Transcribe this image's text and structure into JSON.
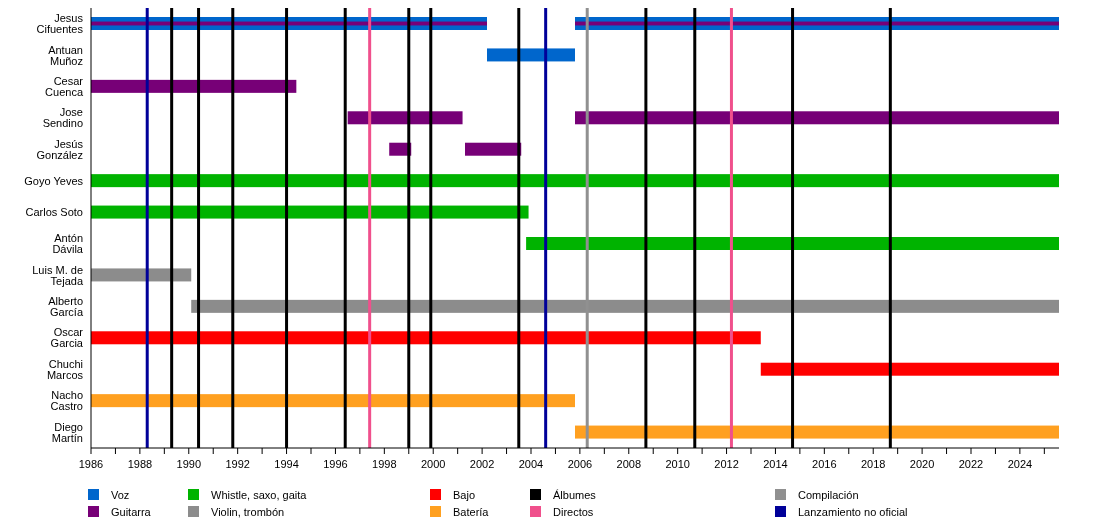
{
  "chart_data": {
    "type": "bar",
    "orientation": "horizontal",
    "legend": "bottom",
    "categories": [
      "Jesus Cifuentes",
      "Antuan Muñoz",
      "Cesar Cuenca",
      "Jose Sendino",
      "Jesús González",
      "Goyo Yeves",
      "Carlos Soto",
      "Antón Dávila",
      "Luis M. de Tejada",
      "Alberto García",
      "Oscar Garcia",
      "Chuchi Marcos",
      "Nacho Castro",
      "Diego Martín"
    ],
    "xlim": [
      1986,
      2025.6
    ],
    "xticks": [
      1986,
      {
        "value": 1987,
        "label": null
      },
      1988,
      {
        "value": 1989,
        "label": null
      },
      1990,
      {
        "value": 1991,
        "label": null
      },
      1992,
      {
        "value": 1993,
        "label": null
      },
      1994,
      {
        "value": 1995,
        "label": null
      },
      1996,
      {
        "value": 1997,
        "label": null
      },
      1998,
      {
        "value": 1999,
        "label": null
      },
      2000,
      {
        "value": 2001,
        "label": null
      },
      2002,
      {
        "value": 2003,
        "label": null
      },
      2004,
      {
        "value": 2005,
        "label": null
      },
      2006,
      {
        "value": 2007,
        "label": null
      },
      2008,
      {
        "value": 2009,
        "label": null
      },
      2010,
      {
        "value": 2011,
        "label": null
      },
      2012,
      {
        "value": 2013,
        "label": null
      },
      2014,
      {
        "value": 2015,
        "label": null
      },
      2016,
      {
        "value": 2017,
        "label": null
      },
      2018,
      {
        "value": 2019,
        "label": null
      },
      2020,
      {
        "value": 2021,
        "label": null
      },
      2022,
      {
        "value": 2023,
        "label": null
      },
      2024,
      {
        "value": 2025,
        "label": null
      }
    ],
    "series": [
      {
        "name": "Voz",
        "color": "#0066cc",
        "base": [
          1986,
          2002.2,
          null,
          null,
          null,
          null,
          null,
          null,
          null,
          null,
          null,
          null,
          null,
          null
        ],
        "values": [
          16.2,
          3.6,
          null,
          null,
          null,
          null,
          null,
          null,
          null,
          null,
          null,
          null,
          null,
          null
        ]
      },
      {
        "name": "Guitarra",
        "color": "#770077",
        "base": [
          1986,
          null,
          1986,
          1996.5,
          1998.2,
          null,
          null,
          null,
          null,
          null,
          null,
          null,
          null,
          null
        ],
        "values": [
          16.2,
          null,
          8.4,
          4.7,
          0.9,
          null,
          null,
          null,
          null,
          null,
          null,
          null,
          null,
          null
        ]
      },
      {
        "color": "#0066cc",
        "base": [
          2005.8,
          null,
          null,
          null,
          null,
          null,
          null,
          null,
          null,
          null,
          null,
          null,
          null,
          null
        ],
        "values": [
          19.8,
          null,
          null,
          null,
          null,
          null,
          null,
          null,
          null,
          null,
          null,
          null,
          null,
          null
        ]
      },
      {
        "color": "#770077",
        "base": [
          2005.8,
          null,
          null,
          2005.8,
          2001.3,
          null,
          null,
          null,
          null,
          null,
          null,
          null,
          null,
          null
        ],
        "values": [
          19.8,
          null,
          null,
          19.8,
          2.3,
          null,
          null,
          null,
          null,
          null,
          null,
          null,
          null,
          null
        ]
      },
      {
        "name": "Whistle, saxo, gaita",
        "color": "#00b300",
        "base": [
          null,
          null,
          null,
          null,
          null,
          1986,
          1986,
          2003.8,
          null,
          null,
          null,
          null,
          null,
          null
        ],
        "values": [
          null,
          null,
          null,
          null,
          null,
          39.6,
          17.9,
          21.8,
          null,
          null,
          null,
          null,
          null,
          null
        ]
      },
      {
        "name": "Violin, trombón",
        "color": "#8c8c8c",
        "base": [
          null,
          null,
          null,
          null,
          null,
          null,
          null,
          null,
          1986,
          1990.1,
          null,
          null,
          null,
          null
        ],
        "values": [
          null,
          null,
          null,
          null,
          null,
          null,
          null,
          null,
          4.1,
          35.5,
          null,
          null,
          null,
          null
        ]
      },
      {
        "name": "Bajo",
        "color": "#ff0000",
        "base": [
          null,
          null,
          null,
          null,
          null,
          null,
          null,
          null,
          null,
          null,
          1986,
          2013.4,
          null,
          null
        ],
        "values": [
          null,
          null,
          null,
          null,
          null,
          null,
          null,
          null,
          null,
          null,
          27.4,
          12.2,
          null,
          null
        ]
      },
      {
        "name": "Batería",
        "color": "#ffa020",
        "base": [
          null,
          null,
          null,
          null,
          null,
          null,
          null,
          null,
          null,
          null,
          null,
          null,
          1986,
          2005.8
        ],
        "values": [
          null,
          null,
          null,
          null,
          null,
          null,
          null,
          null,
          null,
          null,
          null,
          null,
          19.8,
          19.8
        ]
      }
    ],
    "ref_lines": [
      {
        "axis": "x",
        "value": 1989.3,
        "label": "Álbumes",
        "color": "#000000"
      },
      {
        "axis": "x",
        "value": 1990.4,
        "color": "#000000"
      },
      {
        "axis": "x",
        "value": 1991.8,
        "color": "#000000"
      },
      {
        "axis": "x",
        "value": 1994.0,
        "color": "#000000"
      },
      {
        "axis": "x",
        "value": 1996.4,
        "color": "#000000"
      },
      {
        "axis": "x",
        "value": 1999.0,
        "color": "#000000"
      },
      {
        "axis": "x",
        "value": 1999.9,
        "color": "#000000"
      },
      {
        "axis": "x",
        "value": 2003.5,
        "color": "#000000"
      },
      {
        "axis": "x",
        "value": 2008.7,
        "color": "#000000"
      },
      {
        "axis": "x",
        "value": 2010.7,
        "color": "#000000"
      },
      {
        "axis": "x",
        "value": 2014.7,
        "color": "#000000"
      },
      {
        "axis": "x",
        "value": 2018.7,
        "color": "#000000"
      },
      {
        "axis": "x",
        "value": 1997.4,
        "label": "Directos",
        "color": "#f0508c"
      },
      {
        "axis": "x",
        "value": 2012.2,
        "color": "#f0508c"
      },
      {
        "axis": "x",
        "value": 2006.3,
        "label": "Compilación",
        "color": "#909090"
      },
      {
        "axis": "x",
        "value": 1988.3,
        "label": "Lanzamiento no oficial",
        "color": "#000099"
      },
      {
        "axis": "x",
        "value": 2004.6,
        "color": "#000099"
      }
    ]
  }
}
